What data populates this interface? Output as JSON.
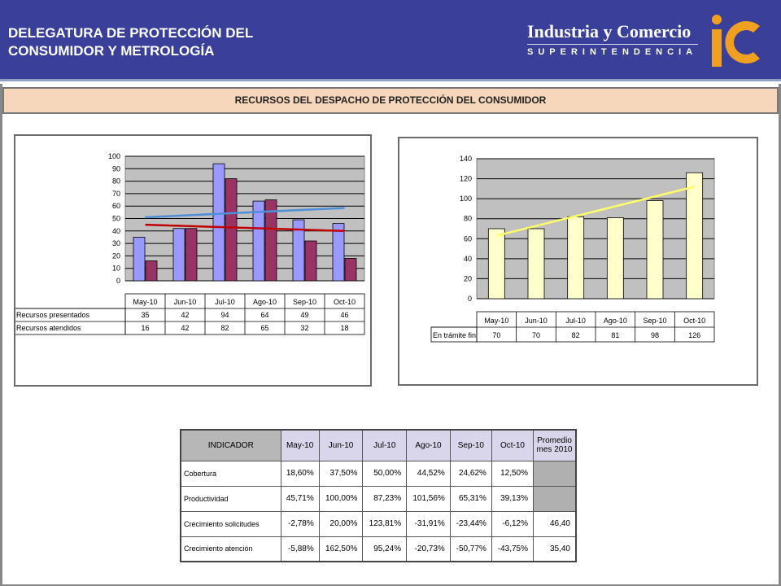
{
  "header": {
    "title_line1": "DELEGATURA DE PROTECCIÓN DEL",
    "title_line2": "CONSUMIDOR Y METROLOGÍA",
    "brand_name": "Industria y Comercio",
    "brand_sub": "SUPERINTENDENCIA",
    "logo": "sic-logo",
    "bg_color": "#3a3f9a",
    "logo_color": "#f0a020"
  },
  "banner": {
    "text": "RECURSOS DEL DESPACHO DE PROTECCIÓN DEL CONSUMIDOR"
  },
  "chart_data": [
    {
      "type": "bar",
      "categories": [
        "May-10",
        "Jun-10",
        "Jul-10",
        "Ago-10",
        "Sep-10",
        "Oct-10"
      ],
      "series": [
        {
          "name": "Recursos presentados",
          "values": [
            35,
            42,
            94,
            64,
            49,
            46
          ],
          "color": "#9999ff"
        },
        {
          "name": "Recursos atendidos",
          "values": [
            16,
            42,
            82,
            65,
            32,
            18
          ],
          "color": "#993366"
        }
      ],
      "trendlines": [
        {
          "series": "Recursos presentados",
          "start": 51,
          "end": 58.5,
          "color": "#4f8fd6"
        },
        {
          "series": "Recursos atendidos",
          "start": 45,
          "end": 40,
          "color": "#c00000"
        }
      ],
      "yticks": [
        "0",
        "10",
        "20",
        "30",
        "40",
        "50",
        "60",
        "70",
        "80",
        "90",
        "100"
      ],
      "ylim": [
        0,
        100
      ],
      "grid": true,
      "legend": "data-table",
      "plot_bg": "#c0c0c0"
    },
    {
      "type": "bar",
      "categories": [
        "May-10",
        "Jun-10",
        "Jul-10",
        "Ago-10",
        "Sep-10",
        "Oct-10"
      ],
      "series": [
        {
          "name": "En trámite fin",
          "values": [
            70,
            70,
            82,
            81,
            98,
            126
          ],
          "color": "#ffffcc"
        }
      ],
      "trendlines": [
        {
          "series": "En trámite fin",
          "start": 63,
          "end": 112,
          "color": "#ffff66"
        }
      ],
      "yticks": [
        "0",
        "20",
        "40",
        "60",
        "80",
        "100",
        "120",
        "140"
      ],
      "ylim": [
        0,
        140
      ],
      "grid": true,
      "legend": "data-table",
      "plot_bg": "#c0c0c0"
    }
  ],
  "indicator_table": {
    "header_first": "INDICADOR",
    "months": [
      "May-10",
      "Jun-10",
      "Jul-10",
      "Ago-10",
      "Sep-10",
      "Oct-10"
    ],
    "avg_line1": "Promedio",
    "avg_line2": "mes 2010",
    "rows": [
      {
        "name": "Cobertura",
        "values": [
          "18,60%",
          "37,50%",
          "50,00%",
          "44,52%",
          "24,62%",
          "12,50%"
        ],
        "avg": ""
      },
      {
        "name": "Productividad",
        "values": [
          "45,71%",
          "100,00%",
          "87,23%",
          "101,56%",
          "65,31%",
          "39,13%"
        ],
        "avg": ""
      },
      {
        "name": "Crecimiento solicitudes",
        "values": [
          "-2,78%",
          "20,00%",
          "123,81%",
          "-31,91%",
          "-23,44%",
          "-6,12%"
        ],
        "avg": "46,40"
      },
      {
        "name": "Crecimiento atención",
        "values": [
          "-5,88%",
          "162,50%",
          "95,24%",
          "-20,73%",
          "-50,77%",
          "-43,75%"
        ],
        "avg": "35,40"
      }
    ]
  }
}
